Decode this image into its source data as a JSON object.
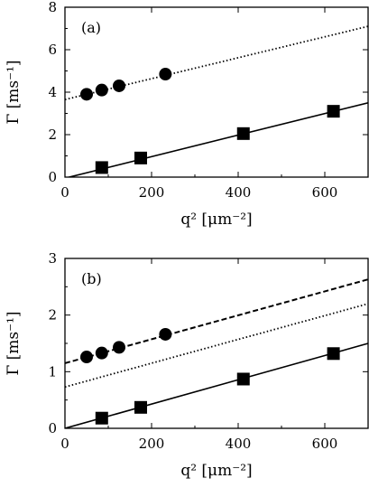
{
  "chart_data": [
    {
      "type": "scatter",
      "panel_label": "(a)",
      "xlabel": "q² [μm⁻²]",
      "ylabel": "Γ [ms⁻¹]",
      "xlim": [
        0,
        700
      ],
      "ylim": [
        0,
        8
      ],
      "xticks": [
        0,
        200,
        400,
        600
      ],
      "yticks": [
        0,
        2,
        4,
        6,
        8
      ],
      "series": [
        {
          "marker": "circle",
          "x": [
            50,
            85,
            125,
            232
          ],
          "y": [
            3.9,
            4.1,
            4.3,
            4.85
          ]
        },
        {
          "marker": "square",
          "x": [
            85,
            175,
            412,
            620
          ],
          "y": [
            0.45,
            0.9,
            2.05,
            3.1
          ]
        }
      ],
      "lines": [
        {
          "style": "dotted",
          "x": [
            0,
            700
          ],
          "y": [
            3.65,
            7.1
          ]
        },
        {
          "style": "solid",
          "x": [
            0,
            700
          ],
          "y": [
            -0.05,
            3.5
          ]
        }
      ]
    },
    {
      "type": "scatter",
      "panel_label": "(b)",
      "xlabel": "q² [μm⁻²]",
      "ylabel": "Γ [ms⁻¹]",
      "xlim": [
        0,
        700
      ],
      "ylim": [
        0,
        3
      ],
      "xticks": [
        0,
        200,
        400,
        600
      ],
      "yticks": [
        0,
        1,
        2,
        3
      ],
      "series": [
        {
          "marker": "circle",
          "x": [
            50,
            85,
            125,
            232
          ],
          "y": [
            1.26,
            1.33,
            1.43,
            1.66
          ]
        },
        {
          "marker": "square",
          "x": [
            85,
            175,
            412,
            620
          ],
          "y": [
            0.18,
            0.37,
            0.87,
            1.32
          ]
        }
      ],
      "lines": [
        {
          "style": "dashed",
          "x": [
            0,
            700
          ],
          "y": [
            1.15,
            2.63
          ]
        },
        {
          "style": "dotted",
          "x": [
            0,
            700
          ],
          "y": [
            0.73,
            2.2
          ]
        },
        {
          "style": "solid",
          "x": [
            0,
            700
          ],
          "y": [
            0.0,
            1.5
          ]
        }
      ]
    }
  ]
}
